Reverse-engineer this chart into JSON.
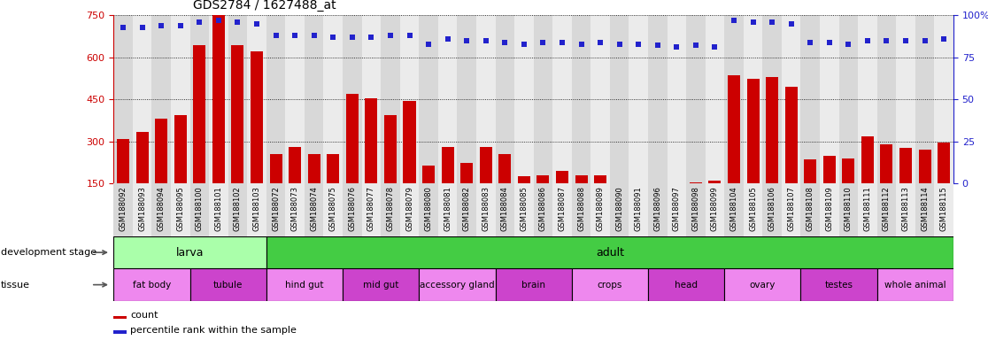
{
  "title": "GDS2784 / 1627488_at",
  "samples": [
    "GSM188092",
    "GSM188093",
    "GSM188094",
    "GSM188095",
    "GSM188100",
    "GSM188101",
    "GSM188102",
    "GSM188103",
    "GSM188072",
    "GSM188073",
    "GSM188074",
    "GSM188075",
    "GSM188076",
    "GSM188077",
    "GSM188078",
    "GSM188079",
    "GSM188080",
    "GSM188081",
    "GSM188082",
    "GSM188083",
    "GSM188084",
    "GSM188085",
    "GSM188086",
    "GSM188087",
    "GSM188088",
    "GSM188089",
    "GSM188090",
    "GSM188091",
    "GSM188096",
    "GSM188097",
    "GSM188098",
    "GSM188099",
    "GSM188104",
    "GSM188105",
    "GSM188106",
    "GSM188107",
    "GSM188108",
    "GSM188109",
    "GSM188110",
    "GSM188111",
    "GSM188112",
    "GSM188113",
    "GSM188114",
    "GSM188115"
  ],
  "counts": [
    310,
    335,
    380,
    395,
    645,
    750,
    645,
    620,
    255,
    280,
    255,
    255,
    470,
    455,
    395,
    445,
    215,
    280,
    225,
    280,
    255,
    175,
    180,
    195,
    178,
    180,
    148,
    145,
    140,
    138,
    155,
    160,
    535,
    525,
    530,
    495,
    235,
    248,
    240,
    320,
    290,
    278,
    270,
    295
  ],
  "percentile": [
    93,
    93,
    94,
    94,
    96,
    97,
    96,
    95,
    88,
    88,
    88,
    87,
    87,
    87,
    88,
    88,
    83,
    86,
    85,
    85,
    84,
    83,
    84,
    84,
    83,
    84,
    83,
    83,
    82,
    81,
    82,
    81,
    97,
    96,
    96,
    95,
    84,
    84,
    83,
    85,
    85,
    85,
    85,
    86
  ],
  "ylim_left": [
    0,
    750
  ],
  "yaxis_min_display": 150,
  "yticks_left": [
    150,
    300,
    450,
    600,
    750
  ],
  "ylim_right": [
    0,
    100
  ],
  "yticks_right": [
    0,
    25,
    50,
    75,
    100
  ],
  "bar_color": "#cc0000",
  "dot_color": "#2222cc",
  "development_stages": [
    {
      "label": "larva",
      "start": 0,
      "end": 8,
      "color": "#aaffaa"
    },
    {
      "label": "adult",
      "start": 8,
      "end": 44,
      "color": "#44cc44"
    }
  ],
  "tissues": [
    {
      "label": "fat body",
      "start": 0,
      "end": 4,
      "color": "#ee88ee"
    },
    {
      "label": "tubule",
      "start": 4,
      "end": 8,
      "color": "#cc44cc"
    },
    {
      "label": "hind gut",
      "start": 8,
      "end": 12,
      "color": "#ee88ee"
    },
    {
      "label": "mid gut",
      "start": 12,
      "end": 16,
      "color": "#cc44cc"
    },
    {
      "label": "accessory gland",
      "start": 16,
      "end": 20,
      "color": "#ee88ee"
    },
    {
      "label": "brain",
      "start": 20,
      "end": 24,
      "color": "#cc44cc"
    },
    {
      "label": "crops",
      "start": 24,
      "end": 28,
      "color": "#ee88ee"
    },
    {
      "label": "head",
      "start": 28,
      "end": 32,
      "color": "#cc44cc"
    },
    {
      "label": "ovary",
      "start": 32,
      "end": 36,
      "color": "#ee88ee"
    },
    {
      "label": "testes",
      "start": 36,
      "end": 40,
      "color": "#cc44cc"
    },
    {
      "label": "whole animal",
      "start": 40,
      "end": 44,
      "color": "#ee88ee"
    }
  ]
}
